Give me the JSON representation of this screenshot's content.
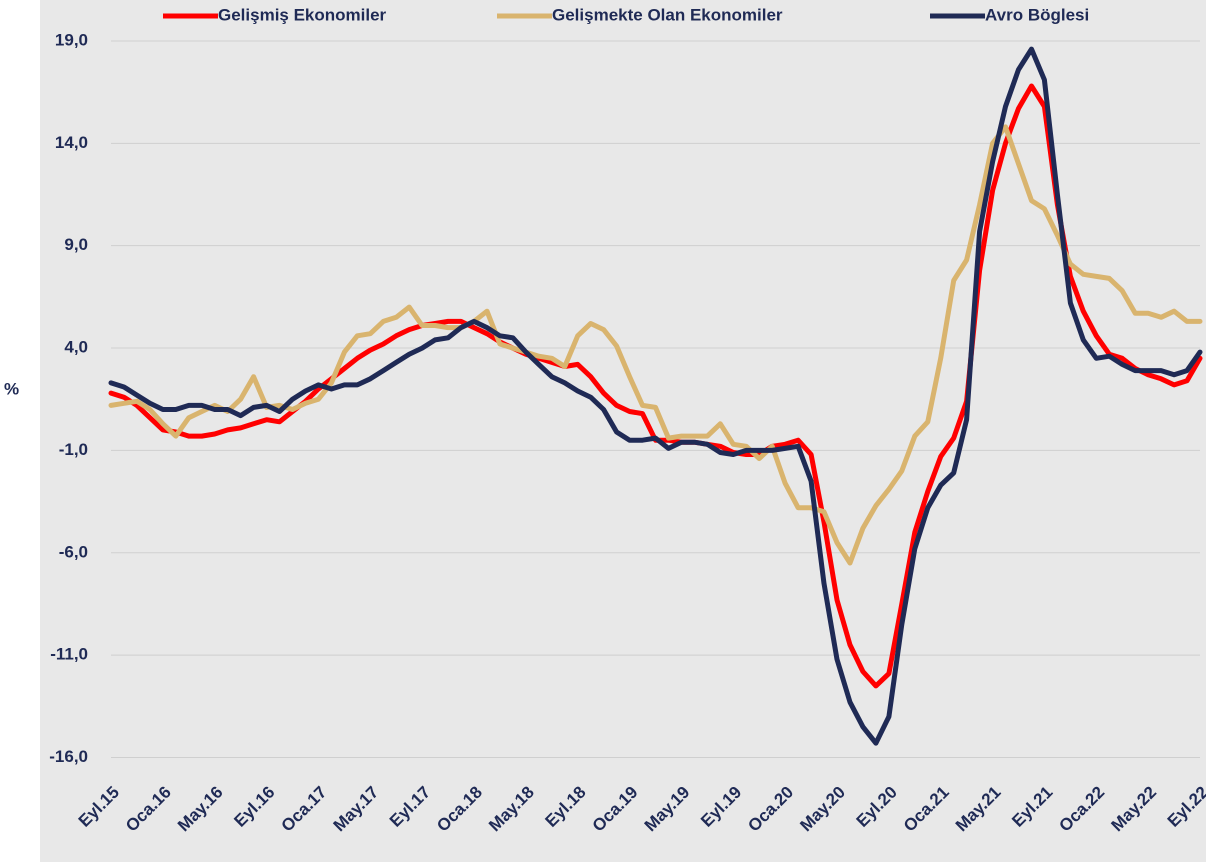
{
  "chart_data": {
    "type": "line",
    "y_label": "%",
    "categories": [
      "Eyl.15",
      null,
      null,
      null,
      "Oca.16",
      null,
      null,
      null,
      "May.16",
      null,
      null,
      null,
      "Eyl.16",
      null,
      null,
      null,
      "Oca.17",
      null,
      null,
      null,
      "May.17",
      null,
      null,
      null,
      "Eyl.17",
      null,
      null,
      null,
      "Oca.18",
      null,
      null,
      null,
      "May.18",
      null,
      null,
      null,
      "Eyl.18",
      null,
      null,
      null,
      "Oca.19",
      null,
      null,
      null,
      "May.19",
      null,
      null,
      null,
      "Eyl.19",
      null,
      null,
      null,
      "Oca.20",
      null,
      null,
      null,
      "May.20",
      null,
      null,
      null,
      "Eyl.20",
      null,
      null,
      null,
      "Oca.21",
      null,
      null,
      null,
      "May.21",
      null,
      null,
      null,
      "Eyl.21",
      null,
      null,
      null,
      "Oca.22",
      null,
      null,
      null,
      "May.22",
      null,
      null,
      null,
      "Eyl.22"
    ],
    "series": [
      {
        "name": "Gelişmiş Ekonomiler",
        "color": "#ff0000",
        "values": [
          1.8,
          1.6,
          1.2,
          0.6,
          0.0,
          -0.1,
          -0.3,
          -0.3,
          -0.2,
          0.0,
          0.1,
          0.3,
          0.5,
          0.4,
          0.9,
          1.4,
          2.0,
          2.5,
          3.0,
          3.5,
          3.9,
          4.2,
          4.6,
          4.9,
          5.1,
          5.2,
          5.3,
          5.3,
          5.0,
          4.7,
          4.3,
          4.0,
          3.7,
          3.5,
          3.3,
          3.1,
          3.2,
          2.6,
          1.8,
          1.2,
          0.9,
          0.8,
          -0.5,
          -0.5,
          -0.6,
          -0.6,
          -0.7,
          -0.8,
          -1.1,
          -1.2,
          -1.2,
          -0.8,
          -0.7,
          -0.5,
          -1.2,
          -4.5,
          -8.3,
          -10.5,
          -11.8,
          -12.5,
          -11.9,
          -8.5,
          -5.0,
          -3.0,
          -1.3,
          -0.4,
          1.4,
          7.8,
          11.7,
          14.0,
          15.7,
          16.8,
          15.8,
          11.0,
          7.5,
          5.8,
          4.6,
          3.7,
          3.5,
          3.0,
          2.7,
          2.5,
          2.2,
          2.4,
          3.5
        ]
      },
      {
        "name": "Gelişmekte Olan Ekonomiler",
        "color": "#d9b46e",
        "values": [
          1.2,
          1.3,
          1.4,
          1.0,
          0.3,
          -0.3,
          0.6,
          0.9,
          1.2,
          0.9,
          1.5,
          2.6,
          1.1,
          1.2,
          1.0,
          1.3,
          1.5,
          2.3,
          3.8,
          4.6,
          4.7,
          5.3,
          5.5,
          6.0,
          5.1,
          5.1,
          5.0,
          5.0,
          5.3,
          5.8,
          4.2,
          4.0,
          3.8,
          3.6,
          3.5,
          3.1,
          4.6,
          5.2,
          4.9,
          4.1,
          2.6,
          1.2,
          1.1,
          -0.4,
          -0.3,
          -0.3,
          -0.3,
          0.3,
          -0.7,
          -0.8,
          -1.4,
          -0.8,
          -2.6,
          -3.8,
          -3.8,
          -4.0,
          -5.5,
          -6.5,
          -4.8,
          -3.7,
          -2.9,
          -2.0,
          -0.3,
          0.4,
          3.5,
          7.3,
          8.3,
          11.0,
          14.0,
          14.8,
          13.0,
          11.2,
          10.8,
          9.5,
          8.1,
          7.6,
          7.5,
          7.4,
          6.8,
          5.7,
          5.7,
          5.5,
          5.8,
          5.3,
          5.3
        ]
      },
      {
        "name": "Avro Böglesi",
        "color": "#1f2a55",
        "values": [
          2.3,
          2.1,
          1.7,
          1.3,
          1.0,
          1.0,
          1.2,
          1.2,
          1.0,
          1.0,
          0.7,
          1.1,
          1.2,
          0.9,
          1.5,
          1.9,
          2.2,
          2.0,
          2.2,
          2.2,
          2.5,
          2.9,
          3.3,
          3.7,
          4.0,
          4.4,
          4.5,
          5.0,
          5.3,
          5.0,
          4.6,
          4.5,
          3.8,
          3.2,
          2.6,
          2.3,
          1.9,
          1.6,
          1.0,
          -0.1,
          -0.5,
          -0.5,
          -0.4,
          -0.9,
          -0.6,
          -0.6,
          -0.7,
          -1.1,
          -1.2,
          -1.0,
          -1.0,
          -1.0,
          -0.9,
          -0.8,
          -2.5,
          -7.5,
          -11.2,
          -13.3,
          -14.5,
          -15.3,
          -14.0,
          -9.5,
          -5.8,
          -3.8,
          -2.7,
          -2.1,
          0.5,
          9.7,
          13.1,
          15.8,
          17.6,
          18.6,
          17.1,
          11.5,
          6.2,
          4.4,
          3.5,
          3.6,
          3.2,
          2.9,
          2.9,
          2.9,
          2.7,
          2.9,
          3.8
        ]
      }
    ],
    "ylim": [
      -17,
      21
    ],
    "yticks": [
      {
        "value": -16,
        "label": "-16,0"
      },
      {
        "value": -11,
        "label": "-11,0"
      },
      {
        "value": -6,
        "label": "-6,0"
      },
      {
        "value": -1,
        "label": "-1,0"
      },
      {
        "value": 4,
        "label": "4,0"
      },
      {
        "value": 9,
        "label": "9,0"
      },
      {
        "value": 14,
        "label": "14,0"
      },
      {
        "value": 19,
        "label": "19,0"
      }
    ],
    "grid": true,
    "legend": "top"
  }
}
